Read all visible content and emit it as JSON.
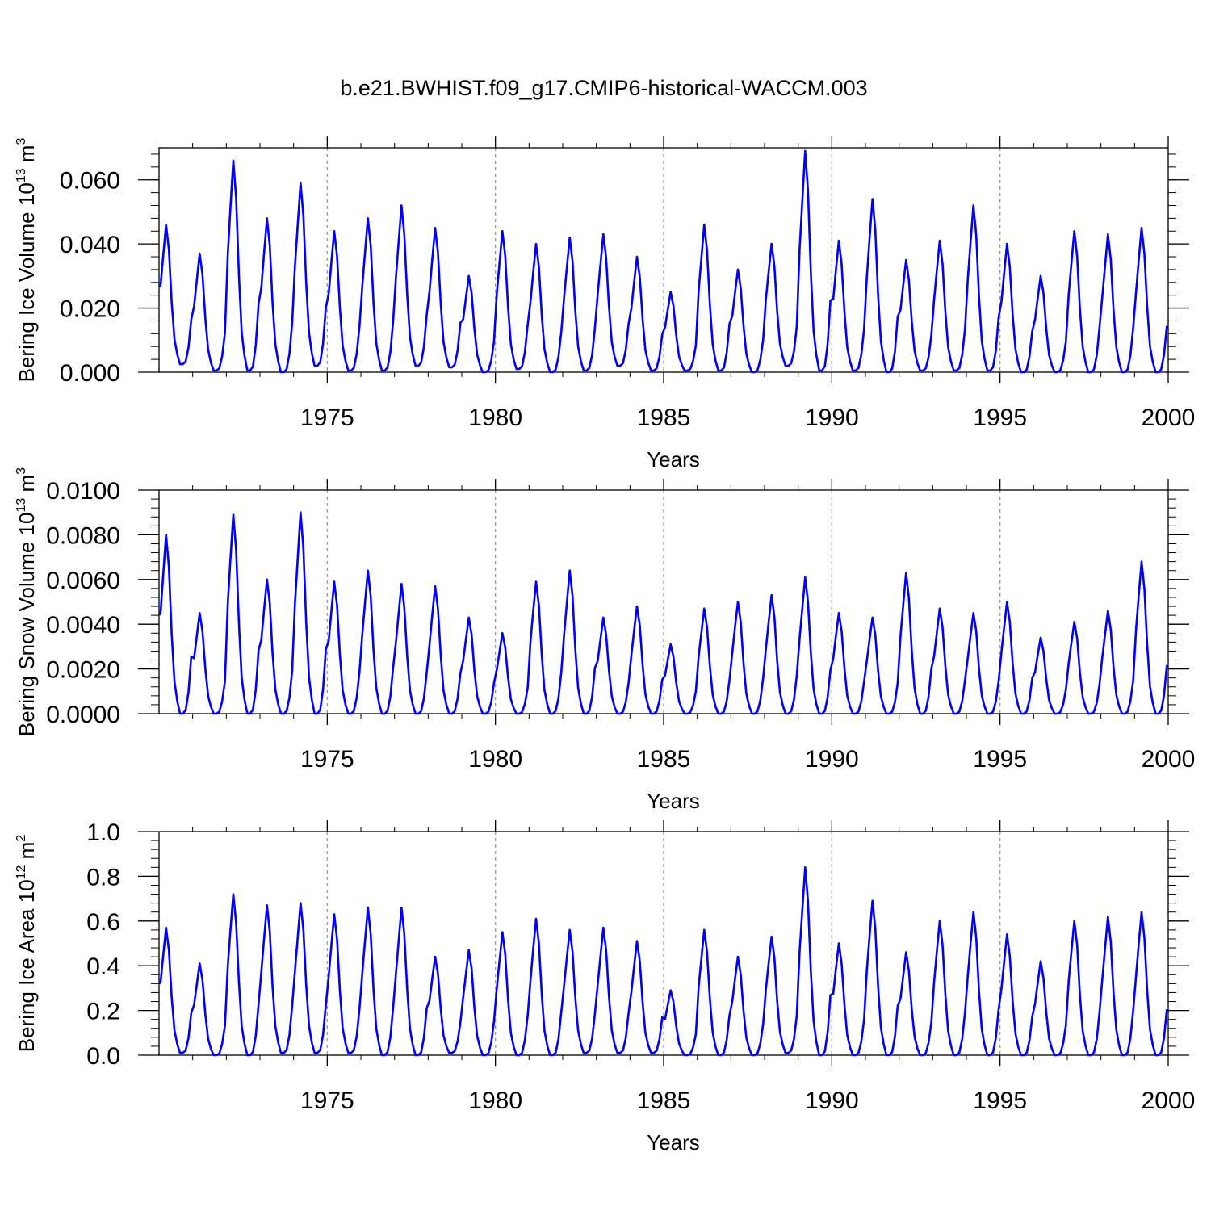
{
  "title": "b.e21.BWHIST.f09_g17.CMIP6-historical-WACCM.003",
  "line_color": "#0000ff",
  "chart_data": [
    {
      "type": "line",
      "ylabel": "Bering Ice Volume 10",
      "ylabel_exp": "13",
      "ylabel_unit": "m",
      "ylabel_unit_exp": "3",
      "xlabel": "Years",
      "ylim": [
        0,
        0.07
      ],
      "xlim": [
        1970,
        2000
      ],
      "yticks": [
        0,
        0.02,
        0.04,
        0.06
      ],
      "ytick_labels": [
        "0.000",
        "0.020",
        "0.040",
        "0.060"
      ],
      "xticks": [
        1975,
        1980,
        1985,
        1990,
        1995,
        2000
      ],
      "xtick_labels": [
        "1975",
        "1980",
        "1985",
        "1990",
        "1995",
        "2000"
      ],
      "peaks": [
        0.046,
        0.037,
        0.066,
        0.048,
        0.059,
        0.044,
        0.048,
        0.052,
        0.045,
        0.03,
        0.044,
        0.04,
        0.042,
        0.043,
        0.036,
        0.025,
        0.046,
        0.032,
        0.04,
        0.069,
        0.041,
        0.054,
        0.035,
        0.041,
        0.052,
        0.04,
        0.03,
        0.044,
        0.043,
        0.045
      ],
      "troughs": [
        0.0025,
        0.0005,
        0.0005,
        0.0,
        0.002,
        0.0005,
        0.0005,
        0.002,
        0.0015,
        0.0,
        0.001,
        0.0,
        0.0005,
        0.002,
        0.0005,
        0.0005,
        0.0005,
        0.0,
        0.002,
        0.0005,
        0.0005,
        0.0,
        0.0005,
        0.0005,
        0.0005,
        0.0,
        0.0,
        0.0,
        0.0,
        0.0
      ]
    },
    {
      "type": "line",
      "ylabel": "Bering Snow Volume 10",
      "ylabel_exp": "13",
      "ylabel_unit": "m",
      "ylabel_unit_exp": "3",
      "xlabel": "Years",
      "ylim": [
        0,
        0.01
      ],
      "xlim": [
        1970,
        2000
      ],
      "yticks": [
        0,
        0.002,
        0.004,
        0.006,
        0.008,
        0.01
      ],
      "ytick_labels": [
        "0.0000",
        "0.0020",
        "0.0040",
        "0.0060",
        "0.0080",
        "0.0100"
      ],
      "xticks": [
        1975,
        1980,
        1985,
        1990,
        1995,
        2000
      ],
      "xtick_labels": [
        "1975",
        "1980",
        "1985",
        "1990",
        "1995",
        "2000"
      ],
      "peaks": [
        0.008,
        0.0045,
        0.0089,
        0.006,
        0.009,
        0.0059,
        0.0064,
        0.0058,
        0.0057,
        0.0043,
        0.0036,
        0.0059,
        0.0064,
        0.0043,
        0.0048,
        0.0031,
        0.0047,
        0.005,
        0.0053,
        0.0061,
        0.0045,
        0.0043,
        0.0063,
        0.0047,
        0.0045,
        0.005,
        0.0034,
        0.0041,
        0.0046,
        0.0068
      ],
      "troughs": [
        0.0,
        0.0,
        0.0,
        0.0,
        0.0,
        0.0,
        0.0,
        0.0,
        0.0,
        0.0,
        0.0,
        0.0,
        0.0,
        0.0,
        0.0,
        0.0,
        0.0,
        0.0,
        0.0,
        0.0,
        0.0,
        0.0,
        0.0,
        0.0,
        0.0,
        0.0,
        0.0,
        0.0,
        0.0,
        0.0
      ]
    },
    {
      "type": "line",
      "ylabel": "Bering Ice Area 10",
      "ylabel_exp": "12",
      "ylabel_unit": "m",
      "ylabel_unit_exp": "2",
      "xlabel": "Years",
      "ylim": [
        0,
        1.0
      ],
      "xlim": [
        1970,
        2000
      ],
      "yticks": [
        0,
        0.2,
        0.4,
        0.6,
        0.8,
        1.0
      ],
      "ytick_labels": [
        "0.0",
        "0.2",
        "0.4",
        "0.6",
        "0.8",
        "1.0"
      ],
      "xticks": [
        1975,
        1980,
        1985,
        1990,
        1995,
        2000
      ],
      "xtick_labels": [
        "1975",
        "1980",
        "1985",
        "1990",
        "1995",
        "2000"
      ],
      "peaks": [
        0.57,
        0.41,
        0.72,
        0.67,
        0.68,
        0.63,
        0.66,
        0.66,
        0.44,
        0.47,
        0.55,
        0.61,
        0.56,
        0.57,
        0.51,
        0.29,
        0.56,
        0.44,
        0.53,
        0.84,
        0.5,
        0.69,
        0.46,
        0.6,
        0.64,
        0.54,
        0.42,
        0.6,
        0.62,
        0.64
      ],
      "troughs": [
        0.01,
        0.0,
        0.0,
        0.01,
        0.01,
        0.01,
        0.0,
        0.0,
        0.01,
        0.0,
        0.0,
        0.0,
        0.01,
        0.01,
        0.01,
        0.0,
        0.0,
        0.0,
        0.01,
        0.0,
        0.0,
        0.0,
        0.0,
        0.0,
        0.0,
        0.0,
        0.0,
        0.0,
        0.0,
        0.0
      ]
    }
  ]
}
